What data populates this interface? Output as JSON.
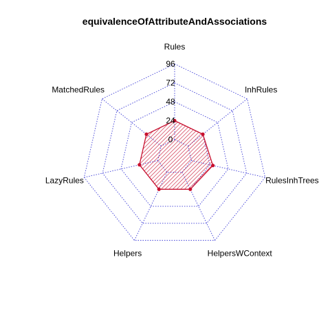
{
  "chart_data": {
    "type": "radar",
    "title": "equivalenceOfAttributeAndAssociations",
    "axes": [
      "Rules",
      "InhRules",
      "RulesInhTrees",
      "HelpersWContext",
      "Helpers",
      "LazyRules",
      "MatchedRules"
    ],
    "ticks": [
      "0",
      "24",
      "48",
      "72",
      "96"
    ],
    "range": [
      0,
      96
    ],
    "series": [
      {
        "values": [
          24,
          24,
          28,
          24,
          24,
          24,
          24
        ]
      }
    ],
    "colors": {
      "grid": "#3b3bd6",
      "series_line": "#c8102e",
      "series_fill": "#c8102e"
    }
  }
}
